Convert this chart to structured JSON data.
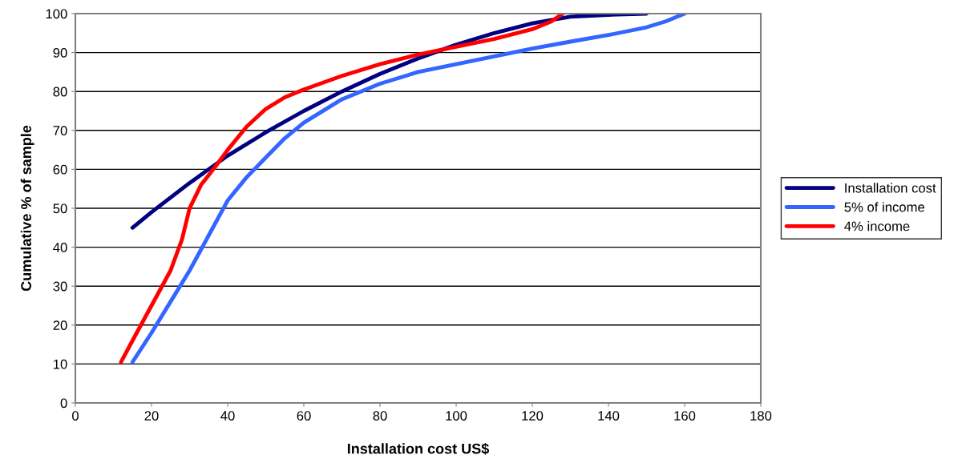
{
  "chart_data": {
    "type": "line",
    "xlabel": "Installation cost US$",
    "ylabel": "Cumulative % of sample",
    "xlim": [
      0,
      180
    ],
    "xticks": [
      0,
      20,
      40,
      60,
      80,
      100,
      120,
      140,
      160,
      180
    ],
    "ylim": [
      0,
      100
    ],
    "yticks": [
      0,
      10,
      20,
      30,
      40,
      50,
      60,
      70,
      80,
      90,
      100
    ],
    "grid": "y",
    "legend": "right",
    "marker": "none",
    "line_style": "solid",
    "series": [
      {
        "name": "Installation cost",
        "color": "#000080",
        "x": [
          15,
          20,
          30,
          40,
          50,
          60,
          70,
          80,
          90,
          100,
          110,
          120,
          130,
          140,
          150
        ],
        "values": [
          45,
          49,
          56.5,
          63.5,
          69.5,
          75,
          80,
          84.5,
          88.5,
          92,
          95,
          97.5,
          99.2,
          99.7,
          100
        ]
      },
      {
        "name": "5% of income",
        "color": "#3366ff",
        "x": [
          15,
          20,
          25,
          30,
          35,
          40,
          45,
          50,
          55,
          60,
          70,
          80,
          90,
          100,
          110,
          120,
          130,
          140,
          150,
          155,
          160
        ],
        "values": [
          10.5,
          18,
          26,
          34,
          43,
          52,
          58,
          63,
          68,
          72,
          78,
          82,
          85,
          87,
          89,
          91,
          92.8,
          94.5,
          96.5,
          98,
          100
        ]
      },
      {
        "name": "4% income",
        "color": "#ff0000",
        "x": [
          12,
          15,
          20,
          25,
          28,
          30,
          33,
          37,
          40,
          45,
          50,
          55,
          60,
          70,
          80,
          90,
          100,
          110,
          120,
          125,
          128
        ],
        "values": [
          10.5,
          16,
          25,
          34,
          42,
          50,
          56,
          61,
          65,
          71,
          75.5,
          78.5,
          80.5,
          84,
          87,
          89.5,
          91.5,
          93.5,
          96,
          98,
          100
        ]
      }
    ]
  }
}
